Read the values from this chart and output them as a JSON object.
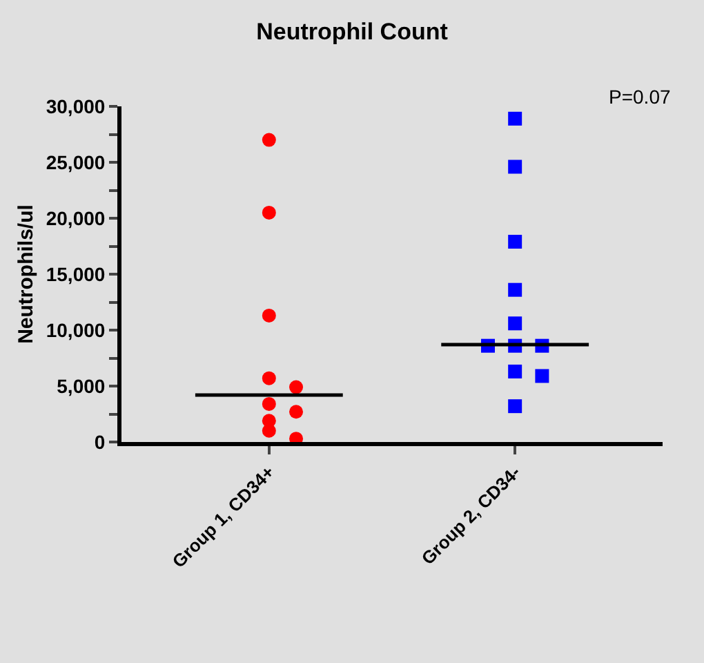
{
  "chart_data": {
    "type": "scatter",
    "title": "Neutrophil Count",
    "ylabel": "Neutrophils/ul",
    "categories": [
      "Group 1, CD34+",
      "Group 2, CD34-"
    ],
    "series": [
      {
        "marker": "circle",
        "color": "#ff0000",
        "x": [
          "Group 1, CD34+",
          "Group 1, CD34+",
          "Group 1, CD34+",
          "Group 1, CD34+",
          "Group 1, CD34+",
          "Group 1, CD34+",
          "Group 1, CD34+",
          "Group 1, CD34+",
          "Group 1, CD34+",
          "Group 1, CD34+"
        ],
        "values": [
          27000,
          20500,
          11300,
          5700,
          4900,
          3400,
          2700,
          1900,
          1000,
          300
        ]
      },
      {
        "marker": "square",
        "color": "#0000ff",
        "x": [
          "Group 2, CD34-",
          "Group 2, CD34-",
          "Group 2, CD34-",
          "Group 2, CD34-",
          "Group 2, CD34-",
          "Group 2, CD34-",
          "Group 2, CD34-",
          "Group 2, CD34-",
          "Group 2, CD34-",
          "Group 2, CD34-",
          "Group 2, CD34-"
        ],
        "values": [
          28900,
          24600,
          17900,
          13600,
          10600,
          8600,
          8600,
          8600,
          6300,
          5900,
          3200
        ]
      },
      {
        "type": "box",
        "color": "#000000",
        "boxes": [
          {
            "low": 4200,
            "q1": 4200,
            "median": 4200,
            "q3": 4200,
            "high": 4200
          },
          {
            "low": 8700,
            "q1": 8700,
            "median": 8700,
            "q3": 8700,
            "high": 8700
          }
        ]
      }
    ],
    "ylim": [
      0,
      30000
    ],
    "yticks": [
      {
        "value": 0,
        "label": "0"
      },
      {
        "value": 2500,
        "label": null
      },
      {
        "value": 5000,
        "label": "5,000"
      },
      {
        "value": 7500,
        "label": null
      },
      {
        "value": 10000,
        "label": "10,000"
      },
      {
        "value": 12500,
        "label": null
      },
      {
        "value": 15000,
        "label": "15,000"
      },
      {
        "value": 17500,
        "label": null
      },
      {
        "value": 20000,
        "label": "20,000"
      },
      {
        "value": 22500,
        "label": null
      },
      {
        "value": 25000,
        "label": "25,000"
      },
      {
        "value": 27500,
        "label": null
      },
      {
        "value": 30000,
        "label": "30,000"
      }
    ],
    "grid": false,
    "annotations": [
      "P=0.07"
    ]
  }
}
